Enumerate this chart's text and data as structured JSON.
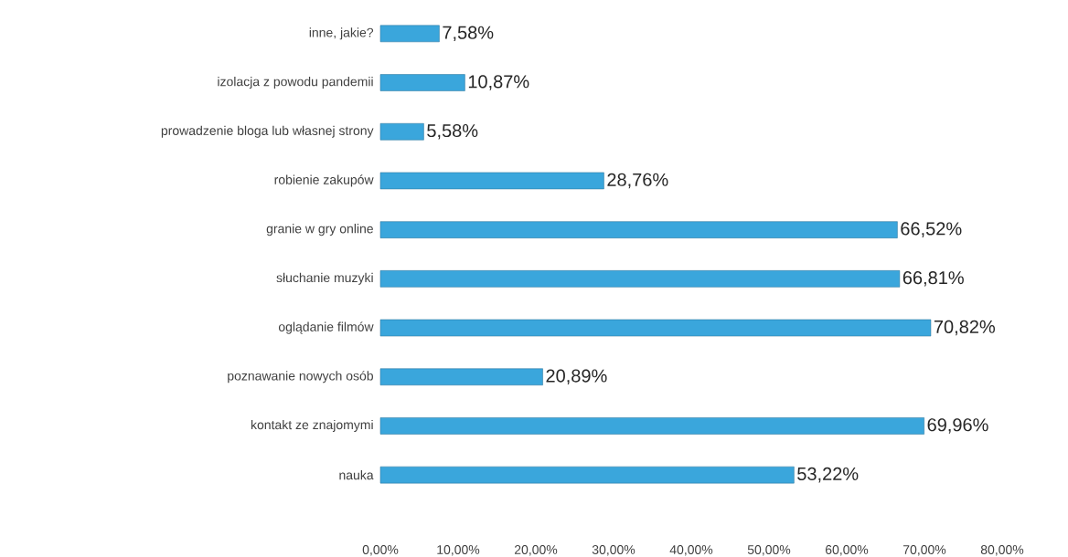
{
  "chart_data": {
    "type": "bar",
    "orientation": "horizontal",
    "categories": [
      "inne, jakie?",
      "izolacja z powodu pandemii",
      "prowadzenie bloga lub własnej strony",
      "robienie zakupów",
      "granie w gry online",
      "słuchanie muzyki",
      "oglądanie filmów",
      "poznawanie nowych osób",
      "kontakt ze znajomymi",
      "nauka"
    ],
    "values": [
      7.58,
      10.87,
      5.58,
      28.76,
      66.52,
      66.81,
      70.82,
      20.89,
      69.96,
      53.22
    ],
    "value_labels": [
      "7,58%",
      "10,87%",
      "5,58%",
      "28,76%",
      "66,52%",
      "66,81%",
      "70,82%",
      "20,89%",
      "69,96%",
      "53,22%"
    ],
    "color": "#3aa6dc",
    "xlim": [
      0,
      80
    ],
    "xticks": [
      {
        "value": 0,
        "label": "0,00%"
      },
      {
        "value": 10,
        "label": "10,00%"
      },
      {
        "value": 20,
        "label": "20,00%"
      },
      {
        "value": 30,
        "label": "30,00%"
      },
      {
        "value": 40,
        "label": "40,00%"
      },
      {
        "value": 50,
        "label": "50,00%"
      },
      {
        "value": 60,
        "label": "60,00%"
      },
      {
        "value": 70,
        "label": "70,00%"
      },
      {
        "value": 80,
        "label": "80,00%"
      }
    ]
  }
}
